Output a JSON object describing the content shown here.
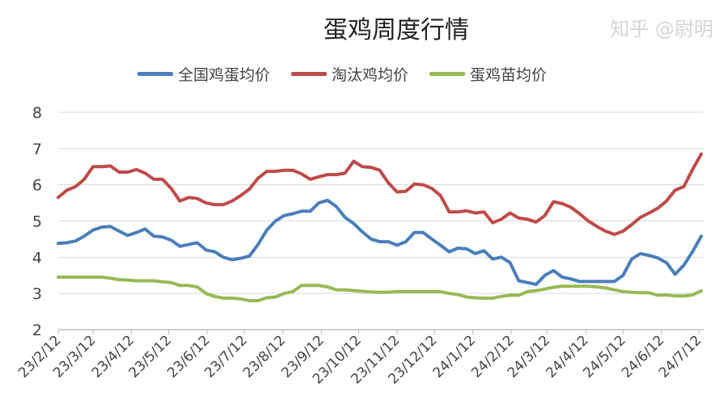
{
  "chart_data": {
    "type": "line",
    "title": "蛋鸡周度行情",
    "xlabel": "",
    "ylabel": "",
    "ylim": [
      2,
      8
    ],
    "yticks": [
      2,
      3,
      4,
      5,
      6,
      7,
      8
    ],
    "grid": true,
    "legend_position": "top",
    "x_tick_labels": [
      "23/2/12",
      "23/3/12",
      "23/4/12",
      "23/5/12",
      "23/6/12",
      "23/7/12",
      "23/8/12",
      "23/9/12",
      "23/10/12",
      "23/11/12",
      "23/12/12",
      "24/1/12",
      "24/2/12",
      "24/3/12",
      "24/4/12",
      "24/5/12",
      "24/6/12",
      "24/7/12"
    ],
    "x_start": "2023-02-12",
    "x_step_days": 7,
    "series": [
      {
        "name": "全国鸡蛋均价",
        "color": "#4a7ebb",
        "values": [
          4.38,
          4.4,
          4.45,
          4.58,
          4.75,
          4.83,
          4.85,
          4.72,
          4.6,
          4.68,
          4.78,
          4.58,
          4.56,
          4.47,
          4.3,
          4.35,
          4.4,
          4.2,
          4.15,
          4.0,
          3.93,
          3.97,
          4.03,
          4.35,
          4.75,
          5.0,
          5.15,
          5.2,
          5.27,
          5.27,
          5.5,
          5.57,
          5.4,
          5.1,
          4.93,
          4.7,
          4.5,
          4.43,
          4.43,
          4.33,
          4.43,
          4.68,
          4.68,
          4.5,
          4.33,
          4.15,
          4.25,
          4.23,
          4.1,
          4.18,
          3.95,
          4.0,
          3.85,
          3.35,
          3.3,
          3.25,
          3.5,
          3.63,
          3.45,
          3.4,
          3.33,
          3.33,
          3.33,
          3.33,
          3.33,
          3.5,
          3.95,
          4.1,
          4.05,
          3.98,
          3.85,
          3.53,
          3.78,
          4.15,
          4.58
        ]
      },
      {
        "name": "淘汰鸡均价",
        "color": "#be4b48",
        "values": [
          5.65,
          5.85,
          5.95,
          6.15,
          6.5,
          6.5,
          6.52,
          6.35,
          6.35,
          6.42,
          6.32,
          6.15,
          6.15,
          5.9,
          5.55,
          5.65,
          5.62,
          5.5,
          5.45,
          5.45,
          5.55,
          5.7,
          5.88,
          6.18,
          6.37,
          6.37,
          6.4,
          6.4,
          6.3,
          6.15,
          6.22,
          6.28,
          6.28,
          6.32,
          6.65,
          6.5,
          6.48,
          6.4,
          6.05,
          5.8,
          5.82,
          6.02,
          6.0,
          5.9,
          5.7,
          5.25,
          5.25,
          5.28,
          5.22,
          5.25,
          4.95,
          5.05,
          5.22,
          5.08,
          5.05,
          4.97,
          5.15,
          5.53,
          5.48,
          5.38,
          5.2,
          5.0,
          4.85,
          4.72,
          4.63,
          4.72,
          4.9,
          5.1,
          5.22,
          5.35,
          5.55,
          5.85,
          5.95,
          6.42,
          6.85
        ]
      },
      {
        "name": "蛋鸡苗均价",
        "color": "#98b954",
        "values": [
          3.45,
          3.45,
          3.45,
          3.45,
          3.45,
          3.45,
          3.42,
          3.38,
          3.37,
          3.35,
          3.35,
          3.35,
          3.32,
          3.3,
          3.22,
          3.22,
          3.18,
          3.0,
          2.92,
          2.87,
          2.87,
          2.85,
          2.8,
          2.8,
          2.88,
          2.9,
          3.0,
          3.05,
          3.22,
          3.22,
          3.22,
          3.18,
          3.1,
          3.1,
          3.08,
          3.06,
          3.04,
          3.03,
          3.03,
          3.05,
          3.05,
          3.05,
          3.05,
          3.05,
          3.05,
          3.0,
          2.97,
          2.9,
          2.88,
          2.87,
          2.87,
          2.92,
          2.95,
          2.95,
          3.05,
          3.08,
          3.12,
          3.17,
          3.2,
          3.2,
          3.2,
          3.2,
          3.18,
          3.15,
          3.1,
          3.05,
          3.03,
          3.02,
          3.02,
          2.95,
          2.96,
          2.93,
          2.93,
          2.96,
          3.07
        ]
      }
    ]
  },
  "watermark": "知乎 @尉明"
}
